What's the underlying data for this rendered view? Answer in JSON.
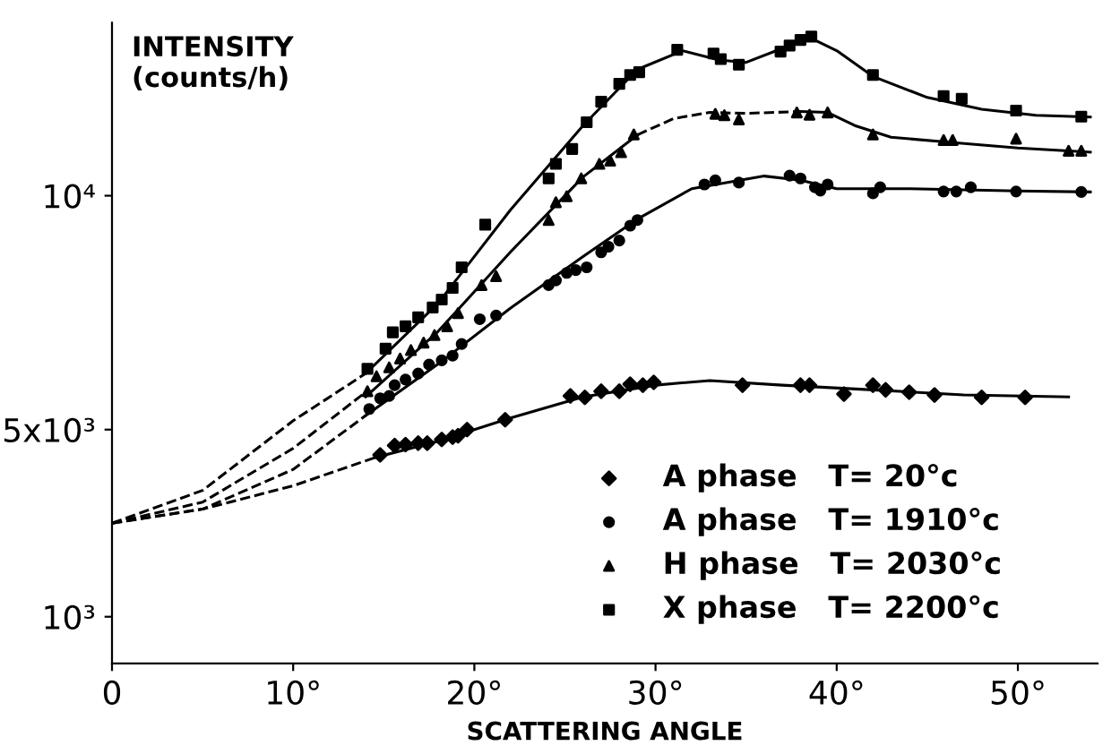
{
  "chart_data": {
    "type": "scatter",
    "xlabel": "SCATTERING ANGLE",
    "ylabel": "INTENSITY\n(counts/h)",
    "xlim": [
      0,
      54.4
    ],
    "ylim": [
      0,
      13700
    ],
    "xticks": [
      0,
      {
        "value": 10,
        "label": "10°"
      },
      {
        "value": 20,
        "label": "20°"
      },
      {
        "value": 30,
        "label": "30°"
      },
      {
        "value": 40,
        "label": "40°"
      },
      {
        "value": 50,
        "label": "50°"
      }
    ],
    "yticks": [
      {
        "value": 1000,
        "label": "10³"
      },
      {
        "value": 5000,
        "label": "5x10³"
      },
      {
        "value": 10000,
        "label": "10⁴"
      }
    ],
    "grid": false,
    "legend": "bottom right",
    "series": [
      {
        "name": "A phase   T= 20°c",
        "marker": "diamond",
        "color": "#000000",
        "x": [
          14.8,
          15.6,
          16.2,
          16.9,
          17.4,
          18.2,
          18.8,
          19.1,
          19.6,
          21.7,
          25.3,
          26.1,
          27.0,
          28.0,
          28.6,
          29.3,
          29.9,
          34.8,
          38.0,
          38.5,
          40.4,
          42.0,
          42.7,
          44.0,
          45.4,
          48.0,
          50.4
        ],
        "values": [
          4460,
          4660,
          4680,
          4710,
          4710,
          4790,
          4840,
          4870,
          5000,
          5210,
          5720,
          5690,
          5820,
          5820,
          5970,
          5950,
          6010,
          5950,
          5950,
          5950,
          5760,
          5950,
          5850,
          5800,
          5740,
          5690,
          5690
        ]
      },
      {
        "name": "A phase   T= 1910°c",
        "marker": "circle",
        "color": "#000000",
        "x": [
          14.2,
          14.8,
          15.3,
          15.6,
          16.2,
          16.9,
          17.5,
          18.2,
          18.8,
          19.3,
          20.3,
          21.2,
          24.1,
          24.5,
          25.1,
          25.6,
          26.2,
          27.0,
          27.4,
          28.0,
          28.6,
          29.0,
          32.7,
          33.3,
          34.6,
          37.4,
          38.0,
          38.8,
          39.1,
          39.5,
          42.0,
          42.4,
          45.9,
          46.6,
          47.4,
          49.9,
          53.5
        ],
        "values": [
          5440,
          5670,
          5720,
          5950,
          6070,
          6200,
          6390,
          6480,
          6580,
          6830,
          7360,
          7440,
          8090,
          8190,
          8350,
          8410,
          8470,
          8790,
          8910,
          9040,
          9360,
          9480,
          10240,
          10330,
          10280,
          10430,
          10370,
          10180,
          10110,
          10240,
          10050,
          10180,
          10090,
          10090,
          10180,
          10090,
          10080
        ]
      },
      {
        "name": "H phase   T= 2030°c",
        "marker": "triangle",
        "color": "#000000",
        "x": [
          14.1,
          14.6,
          15.3,
          15.9,
          16.5,
          17.2,
          17.8,
          18.5,
          19.1,
          20.4,
          21.2,
          24.1,
          24.5,
          25.1,
          25.9,
          26.9,
          27.5,
          28.1,
          28.8,
          33.3,
          33.8,
          34.6,
          37.8,
          38.5,
          39.5,
          42.0,
          45.9,
          46.4,
          49.9,
          52.8,
          53.5
        ],
        "values": [
          5820,
          6140,
          6330,
          6520,
          6700,
          6860,
          7020,
          7210,
          7490,
          8090,
          8280,
          9480,
          9860,
          9990,
          10370,
          10680,
          10750,
          10930,
          11310,
          11750,
          11720,
          11630,
          11780,
          11730,
          11780,
          11310,
          11190,
          11190,
          11220,
          10960,
          10960
        ]
      },
      {
        "name": "X phase   T= 2200°c",
        "marker": "square",
        "color": "#000000",
        "x": [
          14.1,
          15.1,
          15.5,
          16.2,
          16.9,
          17.7,
          18.2,
          18.8,
          19.3,
          20.6,
          24.1,
          24.5,
          25.4,
          26.2,
          27.0,
          28.0,
          28.6,
          29.1,
          31.2,
          33.2,
          33.6,
          34.6,
          36.9,
          37.4,
          38.0,
          38.6,
          42.0,
          45.9,
          46.9,
          49.9,
          53.5
        ],
        "values": [
          6300,
          6730,
          7080,
          7210,
          7400,
          7610,
          7780,
          8030,
          8470,
          9380,
          10370,
          10680,
          11000,
          11570,
          12010,
          12390,
          12580,
          12640,
          13120,
          13040,
          12920,
          12800,
          13080,
          13210,
          13330,
          13400,
          12580,
          12130,
          12070,
          11820,
          11690
        ]
      },
      {
        "type": "line",
        "line_style": "dashed",
        "color": "#000000",
        "x": [
          0,
          5,
          10,
          14.5
        ],
        "values": [
          3000,
          3300,
          3800,
          4400
        ]
      },
      {
        "type": "line",
        "line_style": "solid",
        "color": "#000000",
        "x": [
          14.5,
          18,
          22,
          26,
          30,
          33,
          37,
          42,
          47,
          52.8
        ],
        "values": [
          4400,
          4750,
          5250,
          5700,
          5950,
          6050,
          5950,
          5850,
          5740,
          5700
        ]
      },
      {
        "type": "line",
        "line_style": "dashed",
        "color": "#000000",
        "x": [
          0,
          5,
          10,
          14
        ],
        "values": [
          3000,
          3300,
          4150,
          5300
        ]
      },
      {
        "type": "line",
        "line_style": "solid",
        "color": "#000000",
        "x": [
          14,
          18,
          22,
          26,
          29,
          32,
          36,
          38,
          40,
          44,
          50,
          54
        ],
        "values": [
          5300,
          6400,
          7600,
          8700,
          9500,
          10150,
          10420,
          10330,
          10150,
          10150,
          10100,
          10080
        ]
      },
      {
        "type": "line",
        "line_style": "dashed",
        "color": "#000000",
        "x": [
          0,
          5,
          10,
          14
        ],
        "values": [
          3000,
          3450,
          4600,
          5800
        ]
      },
      {
        "type": "line",
        "line_style": "solid",
        "color": "#000000",
        "x": [
          14,
          18,
          22,
          26,
          29
        ],
        "values": [
          5700,
          7100,
          8800,
          10400,
          11300
        ]
      },
      {
        "type": "line",
        "line_style": "dashed",
        "color": "#000000",
        "x": [
          29,
          31,
          33,
          35,
          38
        ],
        "values": [
          11300,
          11650,
          11780,
          11760,
          11800
        ]
      },
      {
        "type": "line",
        "line_style": "solid",
        "color": "#000000",
        "x": [
          38,
          39.5,
          41,
          43,
          46,
          50,
          54
        ],
        "values": [
          11800,
          11780,
          11500,
          11250,
          11150,
          11020,
          10930
        ]
      },
      {
        "type": "line",
        "line_style": "dashed",
        "color": "#000000",
        "x": [
          0,
          5,
          10,
          14
        ],
        "values": [
          3000,
          3700,
          5190,
          6200
        ]
      },
      {
        "type": "line",
        "line_style": "solid",
        "color": "#000000",
        "x": [
          14,
          18,
          22,
          26,
          29,
          31.5,
          33.5,
          35,
          37,
          38.5,
          40,
          42,
          45,
          48,
          51,
          54
        ],
        "values": [
          6200,
          7700,
          9700,
          11500,
          12700,
          13100,
          12900,
          12850,
          13150,
          13380,
          13100,
          12550,
          12100,
          11850,
          11720,
          11680
        ]
      }
    ]
  }
}
